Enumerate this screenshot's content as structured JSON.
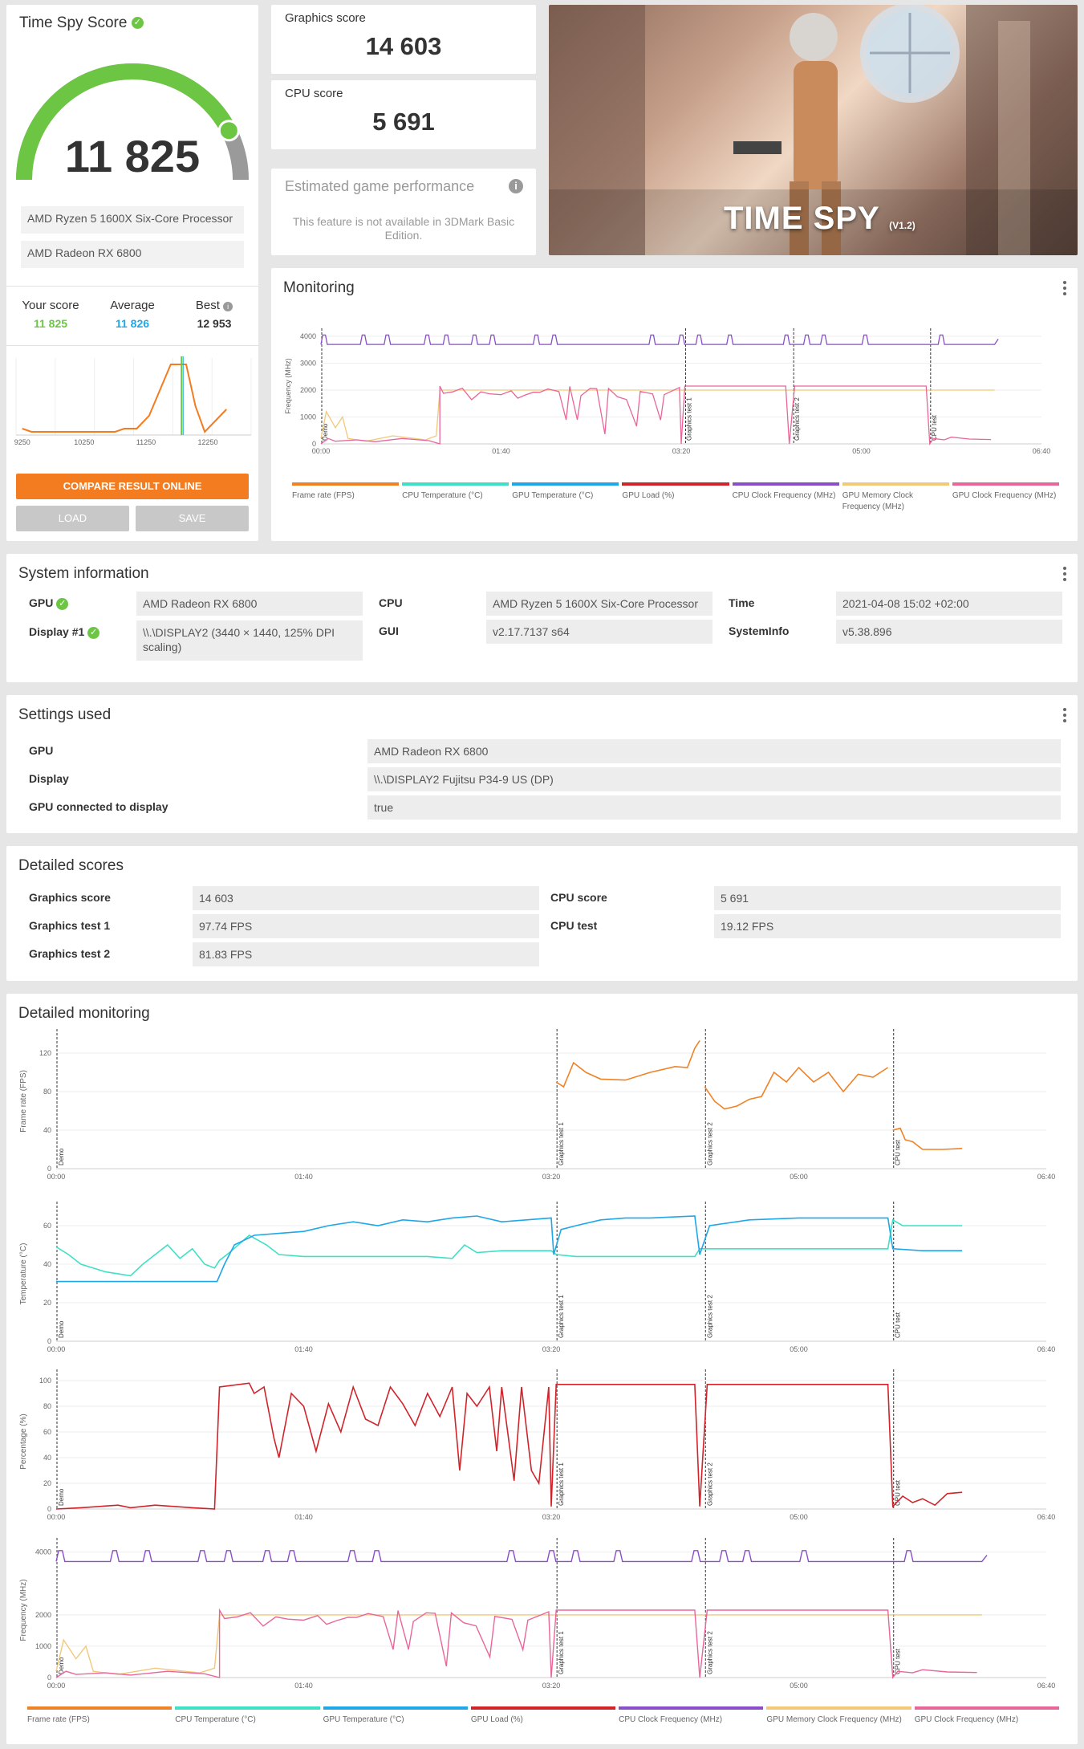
{
  "score_panel": {
    "title": "Time Spy Score",
    "score": "11 825",
    "gauge_fraction": 0.85,
    "cpu": "AMD Ryzen 5 1600X Six-Core Processor",
    "gpu": "AMD Radeon RX 6800",
    "your_score_label": "Your score",
    "your_score": "11 825",
    "average_label": "Average",
    "average": "11 826",
    "best_label": "Best",
    "best": "12 953",
    "compare_btn": "COMPARE RESULT ONLINE",
    "load_btn": "LOAD",
    "save_btn": "SAVE"
  },
  "distribution_chart": {
    "x_ticks": [
      "9250",
      "10250",
      "11250",
      "12250"
    ],
    "points": [
      [
        9250,
        2
      ],
      [
        9400,
        1
      ],
      [
        10750,
        1
      ],
      [
        10900,
        2
      ],
      [
        11100,
        2
      ],
      [
        11300,
        6
      ],
      [
        11650,
        22
      ],
      [
        11900,
        22
      ],
      [
        12050,
        9
      ],
      [
        12200,
        1
      ],
      [
        12550,
        8
      ]
    ],
    "marker_x": 11825
  },
  "graphics_score": {
    "label": "Graphics score",
    "value": "14 603"
  },
  "cpu_score": {
    "label": "CPU score",
    "value": "5 691"
  },
  "estimated": {
    "title": "Estimated game performance",
    "message": "This feature is not available in 3DMark Basic Edition."
  },
  "hero": {
    "title": "TIME SPY",
    "version": "(V1.2)"
  },
  "monitoring": {
    "title": "Monitoring",
    "y_label": "Frequency (MHz)",
    "y_ticks": [
      "4000",
      "3000",
      "2000",
      "1000",
      "0"
    ],
    "x_ticks": [
      "00:00",
      "01:40",
      "03:20",
      "05:00",
      "06:40"
    ],
    "markers": [
      "Demo",
      "Graphics test 1",
      "Graphics test 2",
      "CPU test"
    ]
  },
  "legend": [
    {
      "label": "Frame rate (FPS)",
      "color": "#f08226"
    },
    {
      "label": "CPU Temperature (°C)",
      "color": "#3fe0c5"
    },
    {
      "label": "GPU Temperature (°C)",
      "color": "#1fa7e8"
    },
    {
      "label": "GPU Load (%)",
      "color": "#d0242b"
    },
    {
      "label": "CPU Clock Frequency (MHz)",
      "color": "#8a4ec9"
    },
    {
      "label": "GPU Memory Clock Frequency (MHz)",
      "color": "#f0c97a"
    },
    {
      "label": "GPU Clock Frequency (MHz)",
      "color": "#e8669a"
    }
  ],
  "system_info": {
    "title": "System information",
    "gpu_label": "GPU",
    "gpu_value": "AMD Radeon RX 6800",
    "display_label": "Display #1",
    "display_value": "\\\\.\\DISPLAY2 (3440 × 1440, 125% DPI scaling)",
    "cpu_label": "CPU",
    "cpu_value": "AMD Ryzen 5 1600X Six-Core Processor",
    "gui_label": "GUI",
    "gui_value": "v2.17.7137 s64",
    "time_label": "Time",
    "time_value": "2021-04-08 15:02 +02:00",
    "sysinfo_label": "SystemInfo",
    "sysinfo_value": "v5.38.896"
  },
  "settings": {
    "title": "Settings used",
    "rows": [
      {
        "label": "GPU",
        "value": "AMD Radeon RX 6800"
      },
      {
        "label": "Display",
        "value": "\\\\.\\DISPLAY2 Fujitsu P34-9 US (DP)"
      },
      {
        "label": "GPU connected to display",
        "value": "true"
      }
    ]
  },
  "detailed_scores": {
    "title": "Detailed scores",
    "left": [
      {
        "label": "Graphics score",
        "value": "14 603"
      },
      {
        "label": "Graphics test 1",
        "value": "97.74 FPS"
      },
      {
        "label": "Graphics test 2",
        "value": "81.83 FPS"
      }
    ],
    "right": [
      {
        "label": "CPU score",
        "value": "5 691"
      },
      {
        "label": "CPU test",
        "value": "19.12 FPS"
      }
    ]
  },
  "detailed_monitoring": {
    "title": "Detailed monitoring",
    "x_ticks": [
      "00:00",
      "01:40",
      "03:20",
      "05:00",
      "06:40"
    ],
    "markers": [
      "Demo",
      "Graphics test 1",
      "Graphics test 2",
      "CPU test"
    ],
    "charts": [
      {
        "y_label": "Frame rate (FPS)",
        "y_ticks": [
          "120",
          "80",
          "40",
          "0"
        ]
      },
      {
        "y_label": "Temperature (°C)",
        "y_ticks": [
          "60",
          "40",
          "20",
          "0"
        ]
      },
      {
        "y_label": "Percentage (%)",
        "y_ticks": [
          "100",
          "80",
          "60",
          "40",
          "20",
          "0"
        ]
      },
      {
        "y_label": "Frequency (MHz)",
        "y_ticks": [
          "4000",
          "2000",
          "1000",
          "0"
        ]
      }
    ]
  }
}
